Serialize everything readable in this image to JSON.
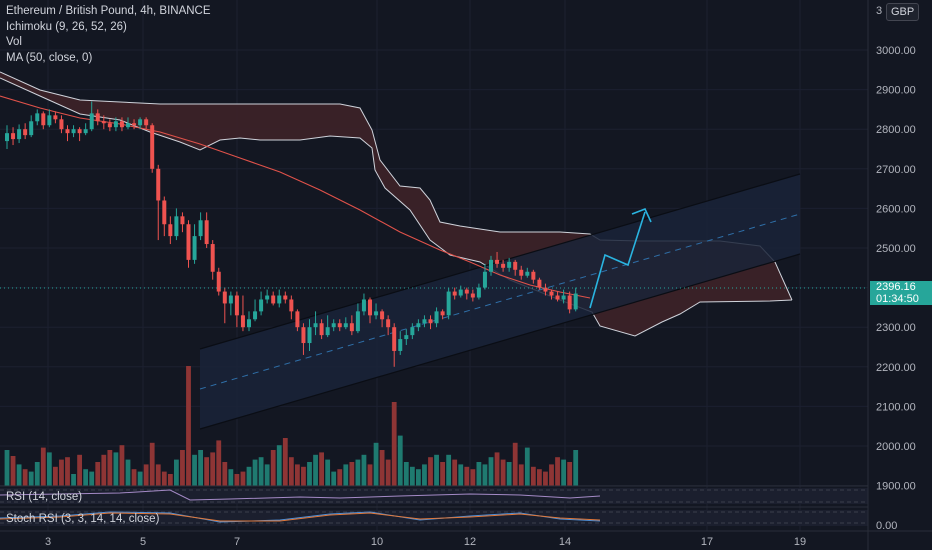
{
  "legend": {
    "symbol": "Ethereum / British Pound, 4h, BINANCE",
    "ichimoku": "Ichimoku (9, 26, 52, 26)",
    "volume": "Vol",
    "ma": "MA (50, close, 0)"
  },
  "currency": "GBP",
  "price_axis": {
    "labels": [
      "3000.00",
      "2900.00",
      "2800.00",
      "2700.00",
      "2600.00",
      "2500.00",
      "2400.00",
      "2300.00",
      "2200.00",
      "2100.00",
      "2000.00",
      "1900.00"
    ],
    "top_partial": "3"
  },
  "current_price": {
    "price": "2396.16",
    "countdown": "01:34:50"
  },
  "time_axis": {
    "labels": [
      "3",
      "5",
      "7",
      "10",
      "12",
      "14",
      "17",
      "19"
    ]
  },
  "indicators": {
    "rsi_label": "RSI (14, close)",
    "stoch_label": "Stoch RSI (3, 3, 14, 14, close)",
    "stoch_axis_value": "0.00"
  },
  "colors": {
    "background": "#131722",
    "up": "#26a69a",
    "down": "#ef5350",
    "ma_line": "#e0524a",
    "cloud_fill": "#3b2228",
    "channel_fill": "#1a2338",
    "projection": "#2ab4e0"
  }
}
